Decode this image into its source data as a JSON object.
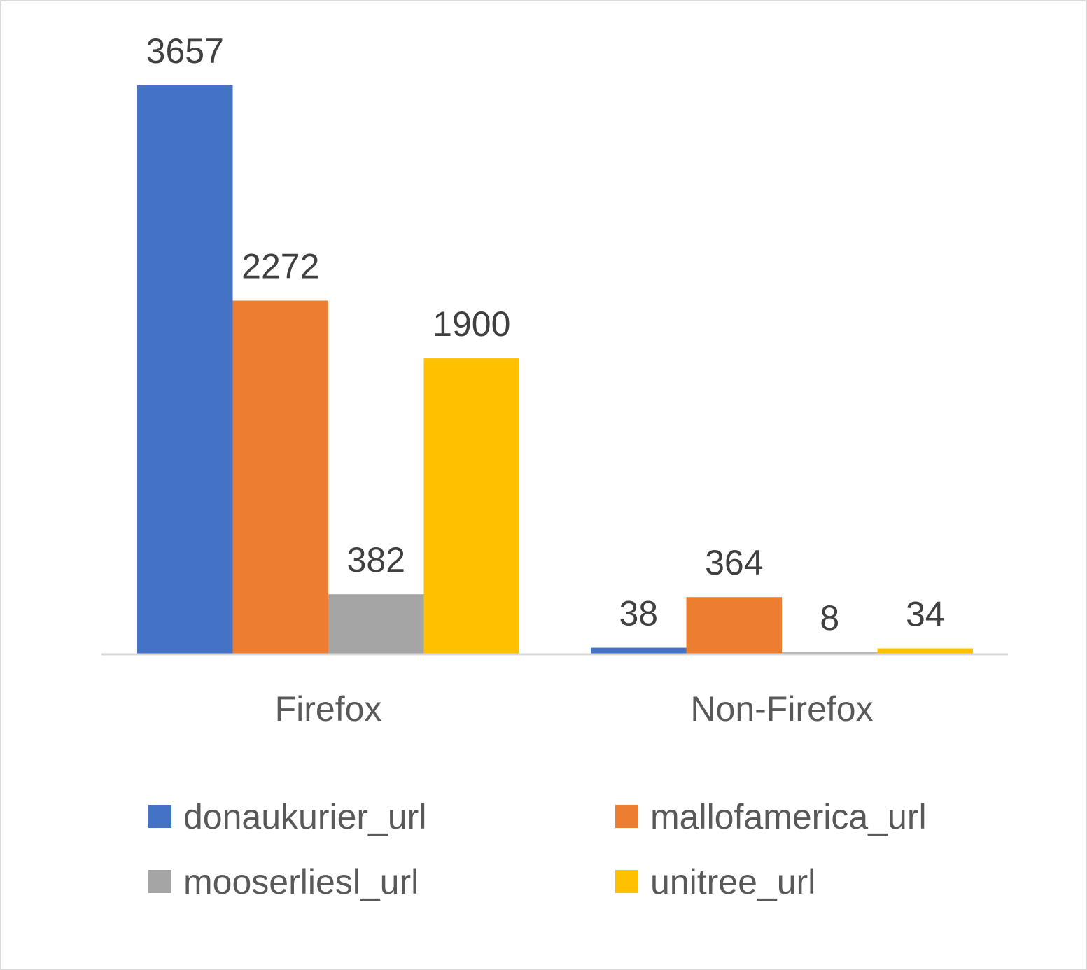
{
  "chart_data": {
    "type": "bar",
    "title": "",
    "xlabel": "",
    "ylabel": "",
    "categories": [
      "Firefox",
      "Non-Firefox"
    ],
    "series": [
      {
        "name": "donaukurier_url",
        "color": "#4472C4",
        "values": [
          3657,
          38
        ]
      },
      {
        "name": "mallofamerica_url",
        "color": "#ED7D31",
        "values": [
          2272,
          364
        ]
      },
      {
        "name": "mooserliesl_url",
        "color": "#A5A5A5",
        "values": [
          382,
          8
        ]
      },
      {
        "name": "unitree_url",
        "color": "#FFC000",
        "values": [
          1900,
          34
        ]
      }
    ],
    "ylim": [
      0,
      3657
    ],
    "grid": false,
    "legend_position": "bottom",
    "data_labels": true
  }
}
